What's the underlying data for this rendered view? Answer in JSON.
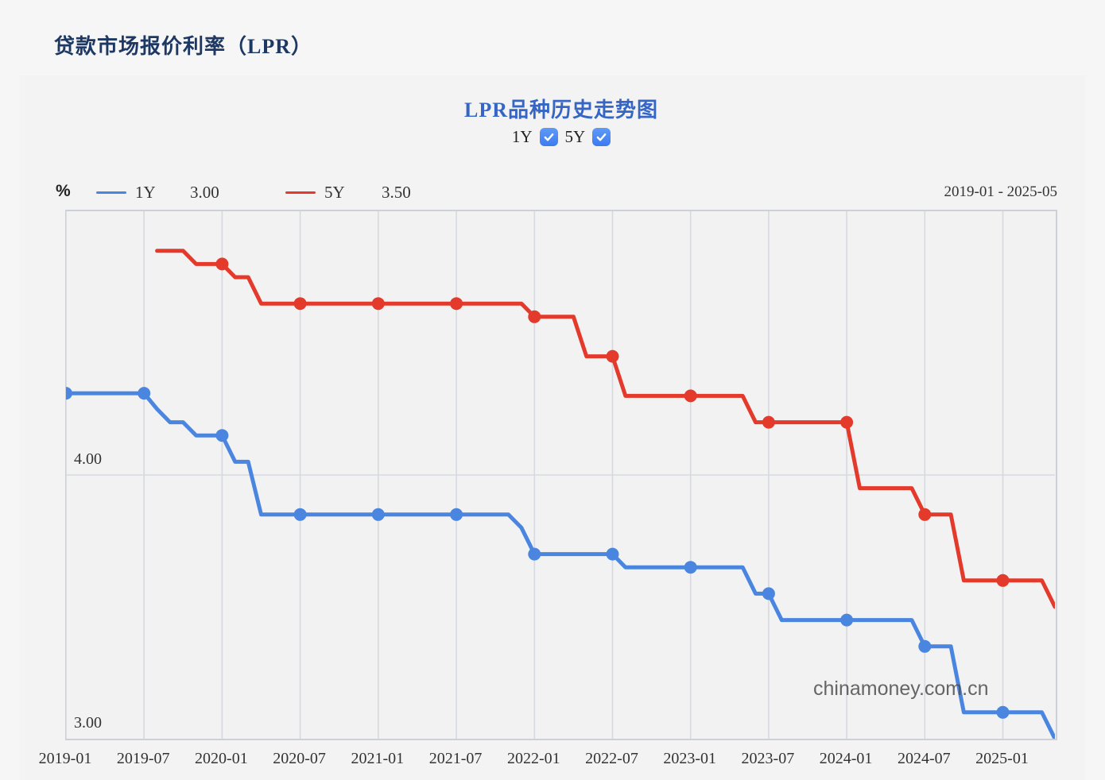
{
  "page": {
    "title": "贷款市场报价利率（LPR）"
  },
  "chart": {
    "title": "LPR品种历史走势图",
    "toggles": [
      {
        "label": "1Y",
        "checked": true
      },
      {
        "label": "5Y",
        "checked": true
      }
    ],
    "unit": "%",
    "legend": [
      {
        "label": "1Y",
        "value": "3.00",
        "color": "#4a86e0"
      },
      {
        "label": "5Y",
        "value": "3.50",
        "color": "#e43a2c"
      }
    ],
    "range_label": "2019-01 - 2025-05",
    "watermark": "chinamoney.com.cn"
  },
  "colors": {
    "line_1y": "#4a86e0",
    "line_5y": "#e43a2c",
    "gridline": "#d6d9df",
    "plot_border": "#cdd0d6",
    "title_navy": "#1d3862",
    "title_blue": "#3566c5",
    "checkbox_blue": "#3b7bf0"
  },
  "chart_data": {
    "type": "line",
    "title": "LPR品种历史走势图",
    "xlabel": "",
    "ylabel": "%",
    "x_start": "2019-01",
    "x_end": "2025-05",
    "months_total": 76,
    "x_tick_months": [
      0,
      6,
      12,
      18,
      24,
      30,
      36,
      42,
      48,
      54,
      60,
      66,
      72
    ],
    "x_tick_labels": [
      "2019-01",
      "2019-07",
      "2020-01",
      "2020-07",
      "2021-01",
      "2021-07",
      "2022-01",
      "2022-07",
      "2023-01",
      "2023-07",
      "2024-01",
      "2024-07",
      "2025-01"
    ],
    "ylim": [
      3.0,
      5.0
    ],
    "y_gridlines": [
      {
        "value": 4.0,
        "label": "4.00"
      },
      {
        "value": 3.0,
        "label": "3.00"
      }
    ],
    "grid": true,
    "legend_position": "top-left",
    "marker_every_months": 6,
    "series": [
      {
        "name": "1Y",
        "color": "#4a86e0",
        "start_month": 0,
        "latest": "3.00",
        "values": [
          4.31,
          4.31,
          4.31,
          4.31,
          4.31,
          4.31,
          4.31,
          4.25,
          4.2,
          4.2,
          4.15,
          4.15,
          4.15,
          4.05,
          4.05,
          3.85,
          3.85,
          3.85,
          3.85,
          3.85,
          3.85,
          3.85,
          3.85,
          3.85,
          3.85,
          3.85,
          3.85,
          3.85,
          3.85,
          3.85,
          3.85,
          3.85,
          3.85,
          3.85,
          3.85,
          3.8,
          3.7,
          3.7,
          3.7,
          3.7,
          3.7,
          3.7,
          3.7,
          3.65,
          3.65,
          3.65,
          3.65,
          3.65,
          3.65,
          3.65,
          3.65,
          3.65,
          3.65,
          3.55,
          3.55,
          3.45,
          3.45,
          3.45,
          3.45,
          3.45,
          3.45,
          3.45,
          3.45,
          3.45,
          3.45,
          3.45,
          3.35,
          3.35,
          3.35,
          3.1,
          3.1,
          3.1,
          3.1,
          3.1,
          3.1,
          3.1,
          3.0
        ]
      },
      {
        "name": "5Y",
        "color": "#e43a2c",
        "start_month": 7,
        "latest": "3.50",
        "values": [
          4.85,
          4.85,
          4.85,
          4.8,
          4.8,
          4.8,
          4.75,
          4.75,
          4.65,
          4.65,
          4.65,
          4.65,
          4.65,
          4.65,
          4.65,
          4.65,
          4.65,
          4.65,
          4.65,
          4.65,
          4.65,
          4.65,
          4.65,
          4.65,
          4.65,
          4.65,
          4.65,
          4.65,
          4.65,
          4.6,
          4.6,
          4.6,
          4.6,
          4.45,
          4.45,
          4.45,
          4.3,
          4.3,
          4.3,
          4.3,
          4.3,
          4.3,
          4.3,
          4.3,
          4.3,
          4.3,
          4.2,
          4.2,
          4.2,
          4.2,
          4.2,
          4.2,
          4.2,
          4.2,
          3.95,
          3.95,
          3.95,
          3.95,
          3.95,
          3.85,
          3.85,
          3.85,
          3.6,
          3.6,
          3.6,
          3.6,
          3.6,
          3.6,
          3.6,
          3.5
        ]
      }
    ]
  }
}
